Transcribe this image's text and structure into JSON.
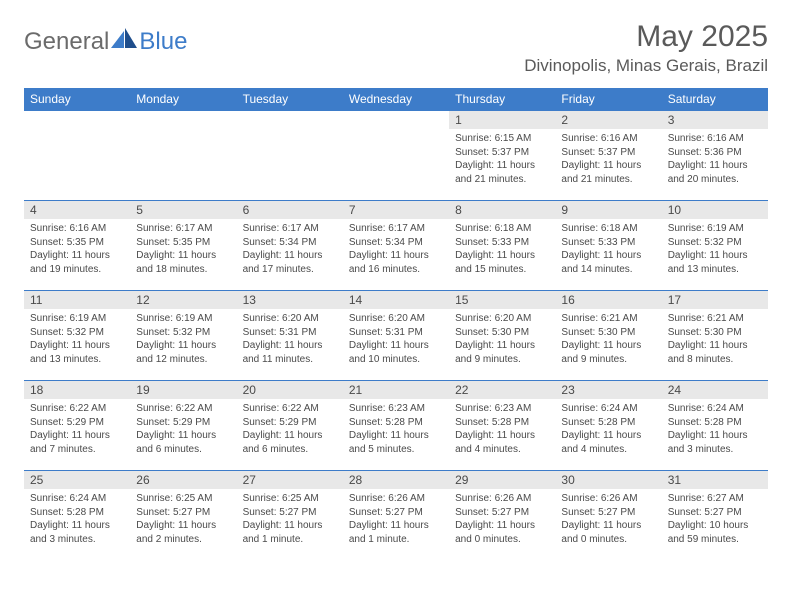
{
  "brand": {
    "general": "General",
    "blue": "Blue"
  },
  "title": {
    "month_year": "May 2025",
    "location": "Divinopolis, Minas Gerais, Brazil"
  },
  "colors": {
    "header_bg": "#3d7cc9",
    "header_text": "#ffffff",
    "day_num_bg": "#e8e8e8",
    "body_text": "#4a4a4a",
    "row_border": "#3d7cc9",
    "logo_gray": "#6b6b6b",
    "logo_blue": "#3d7cc9",
    "title_color": "#5a5a5a",
    "page_bg": "#ffffff"
  },
  "typography": {
    "font_family": "Arial",
    "title_fontsize": 30,
    "location_fontsize": 17,
    "logo_fontsize": 24,
    "header_cell_fontsize": 12,
    "day_num_fontsize": 12,
    "day_body_fontsize": 10
  },
  "day_names": [
    "Sunday",
    "Monday",
    "Tuesday",
    "Wednesday",
    "Thursday",
    "Friday",
    "Saturday"
  ],
  "weeks": [
    [
      null,
      null,
      null,
      null,
      {
        "n": "1",
        "sr": "6:15 AM",
        "ss": "5:37 PM",
        "dl": "11 hours and 21 minutes."
      },
      {
        "n": "2",
        "sr": "6:16 AM",
        "ss": "5:37 PM",
        "dl": "11 hours and 21 minutes."
      },
      {
        "n": "3",
        "sr": "6:16 AM",
        "ss": "5:36 PM",
        "dl": "11 hours and 20 minutes."
      }
    ],
    [
      {
        "n": "4",
        "sr": "6:16 AM",
        "ss": "5:35 PM",
        "dl": "11 hours and 19 minutes."
      },
      {
        "n": "5",
        "sr": "6:17 AM",
        "ss": "5:35 PM",
        "dl": "11 hours and 18 minutes."
      },
      {
        "n": "6",
        "sr": "6:17 AM",
        "ss": "5:34 PM",
        "dl": "11 hours and 17 minutes."
      },
      {
        "n": "7",
        "sr": "6:17 AM",
        "ss": "5:34 PM",
        "dl": "11 hours and 16 minutes."
      },
      {
        "n": "8",
        "sr": "6:18 AM",
        "ss": "5:33 PM",
        "dl": "11 hours and 15 minutes."
      },
      {
        "n": "9",
        "sr": "6:18 AM",
        "ss": "5:33 PM",
        "dl": "11 hours and 14 minutes."
      },
      {
        "n": "10",
        "sr": "6:19 AM",
        "ss": "5:32 PM",
        "dl": "11 hours and 13 minutes."
      }
    ],
    [
      {
        "n": "11",
        "sr": "6:19 AM",
        "ss": "5:32 PM",
        "dl": "11 hours and 13 minutes."
      },
      {
        "n": "12",
        "sr": "6:19 AM",
        "ss": "5:32 PM",
        "dl": "11 hours and 12 minutes."
      },
      {
        "n": "13",
        "sr": "6:20 AM",
        "ss": "5:31 PM",
        "dl": "11 hours and 11 minutes."
      },
      {
        "n": "14",
        "sr": "6:20 AM",
        "ss": "5:31 PM",
        "dl": "11 hours and 10 minutes."
      },
      {
        "n": "15",
        "sr": "6:20 AM",
        "ss": "5:30 PM",
        "dl": "11 hours and 9 minutes."
      },
      {
        "n": "16",
        "sr": "6:21 AM",
        "ss": "5:30 PM",
        "dl": "11 hours and 9 minutes."
      },
      {
        "n": "17",
        "sr": "6:21 AM",
        "ss": "5:30 PM",
        "dl": "11 hours and 8 minutes."
      }
    ],
    [
      {
        "n": "18",
        "sr": "6:22 AM",
        "ss": "5:29 PM",
        "dl": "11 hours and 7 minutes."
      },
      {
        "n": "19",
        "sr": "6:22 AM",
        "ss": "5:29 PM",
        "dl": "11 hours and 6 minutes."
      },
      {
        "n": "20",
        "sr": "6:22 AM",
        "ss": "5:29 PM",
        "dl": "11 hours and 6 minutes."
      },
      {
        "n": "21",
        "sr": "6:23 AM",
        "ss": "5:28 PM",
        "dl": "11 hours and 5 minutes."
      },
      {
        "n": "22",
        "sr": "6:23 AM",
        "ss": "5:28 PM",
        "dl": "11 hours and 4 minutes."
      },
      {
        "n": "23",
        "sr": "6:24 AM",
        "ss": "5:28 PM",
        "dl": "11 hours and 4 minutes."
      },
      {
        "n": "24",
        "sr": "6:24 AM",
        "ss": "5:28 PM",
        "dl": "11 hours and 3 minutes."
      }
    ],
    [
      {
        "n": "25",
        "sr": "6:24 AM",
        "ss": "5:28 PM",
        "dl": "11 hours and 3 minutes."
      },
      {
        "n": "26",
        "sr": "6:25 AM",
        "ss": "5:27 PM",
        "dl": "11 hours and 2 minutes."
      },
      {
        "n": "27",
        "sr": "6:25 AM",
        "ss": "5:27 PM",
        "dl": "11 hours and 1 minute."
      },
      {
        "n": "28",
        "sr": "6:26 AM",
        "ss": "5:27 PM",
        "dl": "11 hours and 1 minute."
      },
      {
        "n": "29",
        "sr": "6:26 AM",
        "ss": "5:27 PM",
        "dl": "11 hours and 0 minutes."
      },
      {
        "n": "30",
        "sr": "6:26 AM",
        "ss": "5:27 PM",
        "dl": "11 hours and 0 minutes."
      },
      {
        "n": "31",
        "sr": "6:27 AM",
        "ss": "5:27 PM",
        "dl": "10 hours and 59 minutes."
      }
    ]
  ],
  "labels": {
    "sunrise": "Sunrise:",
    "sunset": "Sunset:",
    "daylight": "Daylight:"
  }
}
